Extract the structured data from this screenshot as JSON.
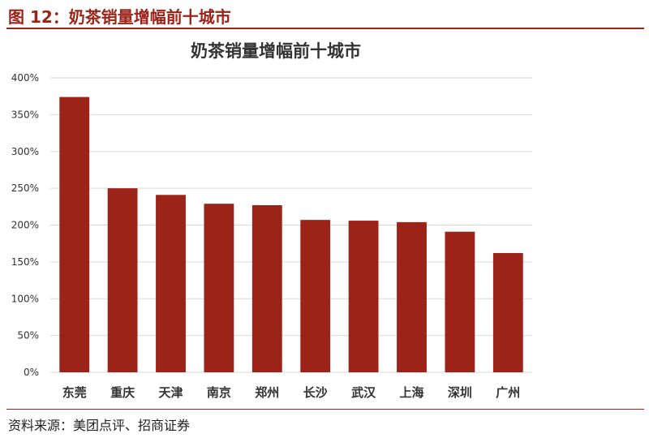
{
  "figure": {
    "label": "图 12：奶茶销量增幅前十城市",
    "source": "资料来源：美团点评、招商证券"
  },
  "colors": {
    "accent": "#9b2318",
    "bar": "#9b2318",
    "grid": "#d9d9d9"
  },
  "chart_data": {
    "type": "bar",
    "title": "奶茶销量增幅前十城市",
    "xlabel": "",
    "ylabel": "",
    "categories": [
      "东莞",
      "重庆",
      "天津",
      "南京",
      "郑州",
      "长沙",
      "武汉",
      "上海",
      "深圳",
      "广州"
    ],
    "values": [
      374,
      250,
      241,
      229,
      227,
      207,
      206,
      204,
      191,
      162
    ],
    "ylim": [
      0,
      400
    ],
    "yticks": [
      0,
      50,
      100,
      150,
      200,
      250,
      300,
      350,
      400
    ],
    "ytick_labels": [
      "0%",
      "50%",
      "100%",
      "150%",
      "200%",
      "250%",
      "300%",
      "350%",
      "400%"
    ],
    "grid": true,
    "legend": "none"
  }
}
